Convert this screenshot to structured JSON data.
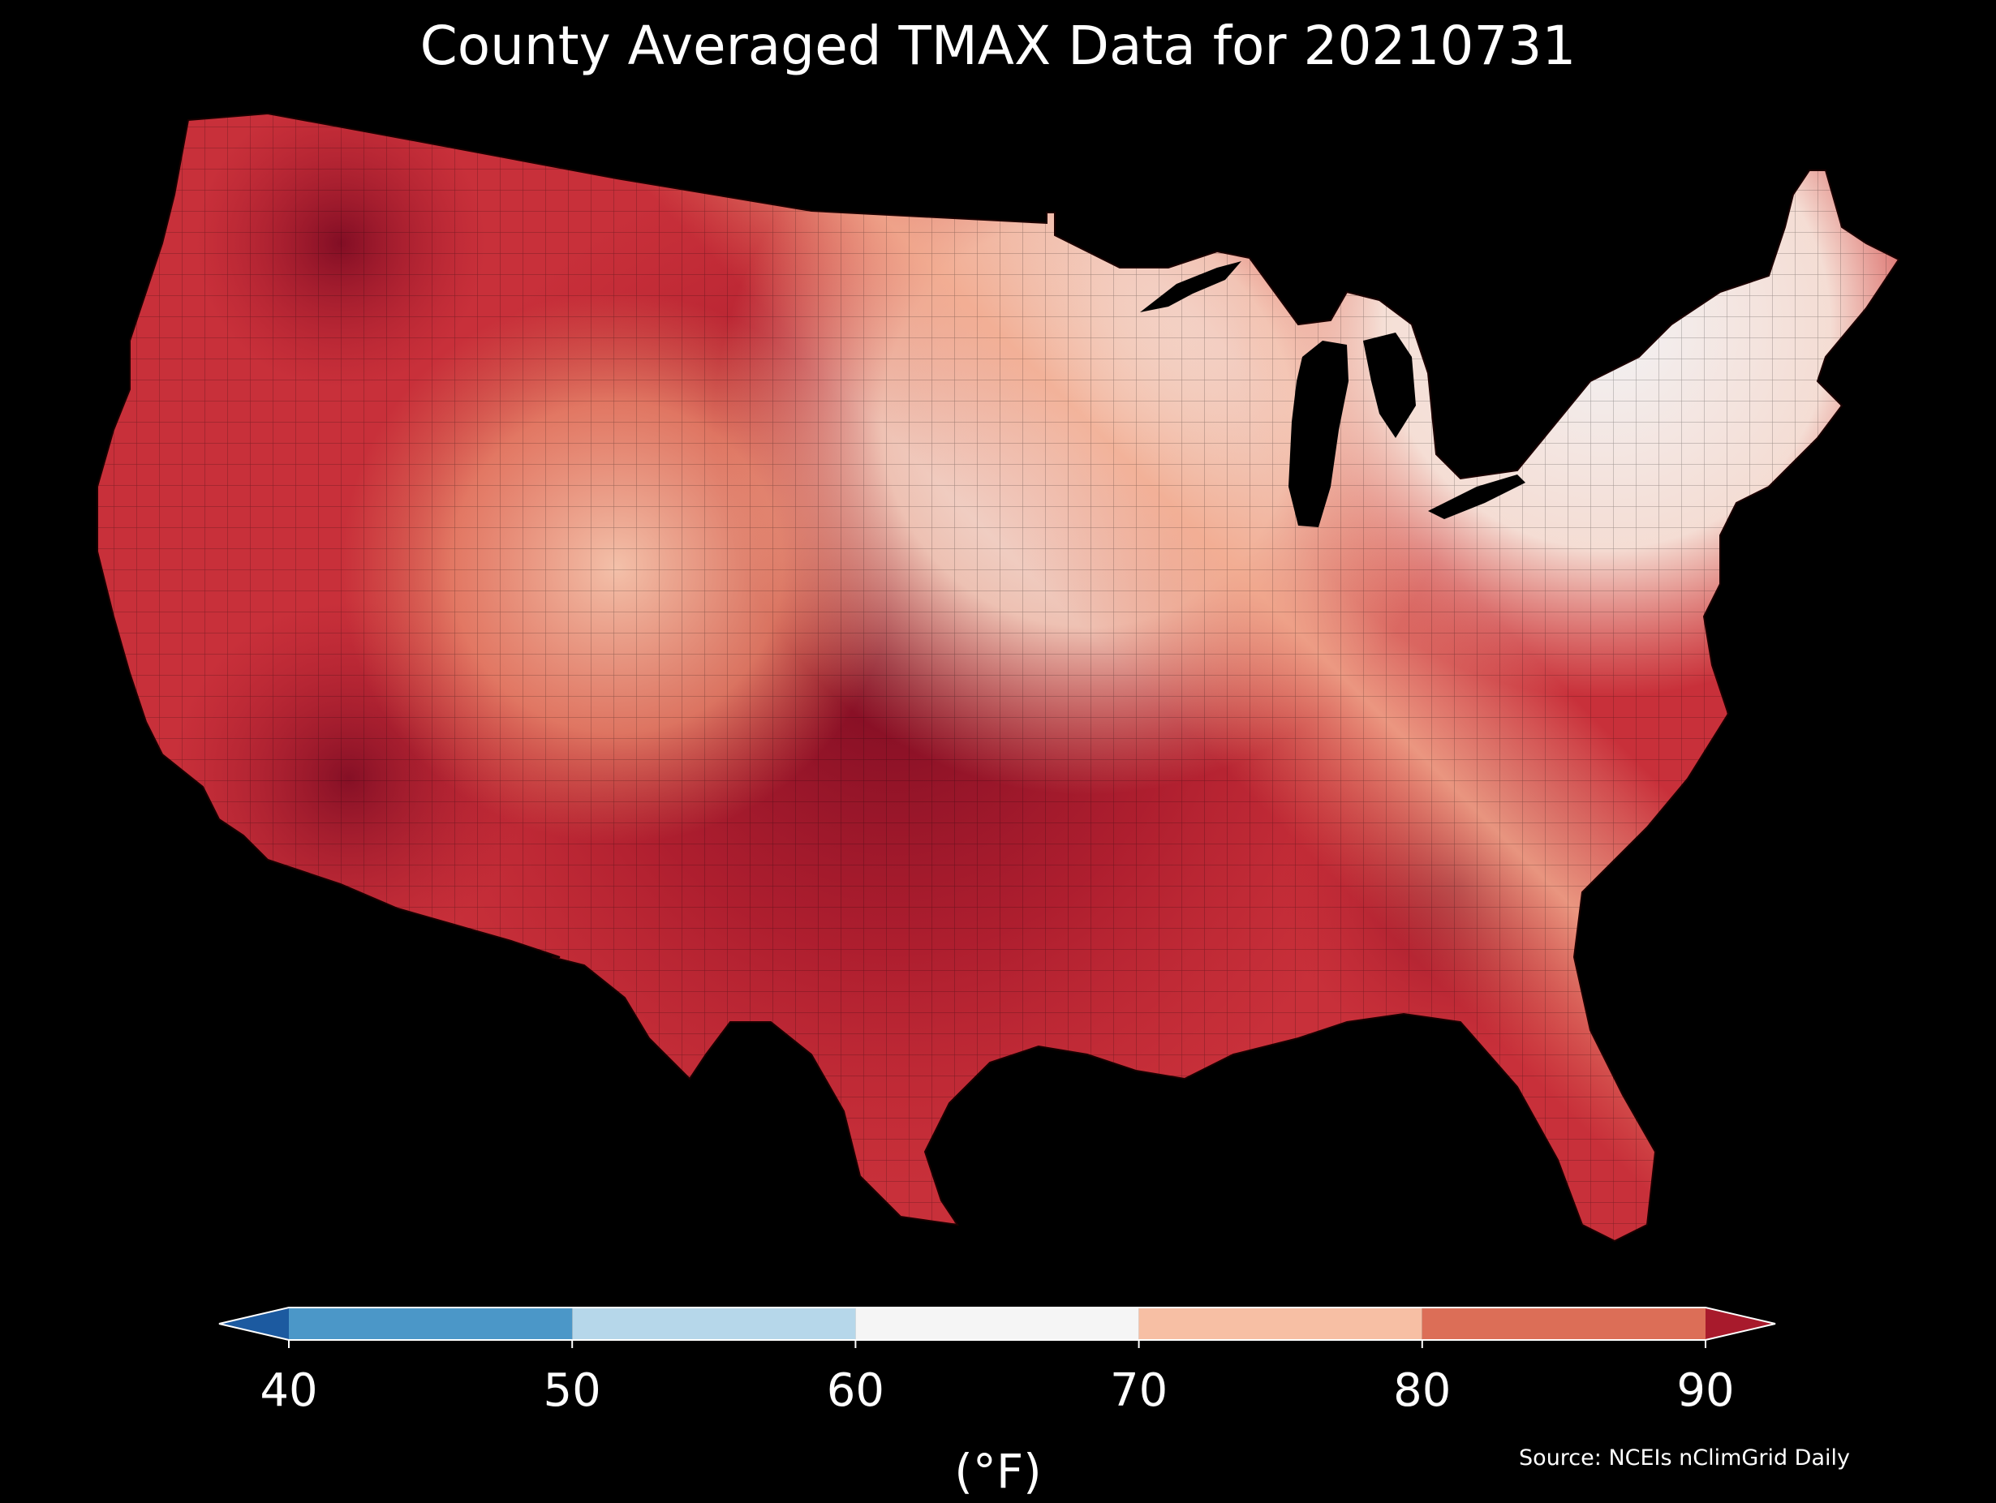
{
  "title": "County Averaged TMAX Data for 20210731",
  "colorbar": {
    "ticks": [
      "40",
      "50",
      "60",
      "70",
      "80",
      "90"
    ],
    "unit_label": "(°F)",
    "bins": [
      {
        "range": [
          40,
          50
        ],
        "color": "#4b97c8"
      },
      {
        "range": [
          50,
          60
        ],
        "color": "#b6d7ea"
      },
      {
        "range": [
          60,
          70
        ],
        "color": "#f5f5f5"
      },
      {
        "range": [
          70,
          80
        ],
        "color": "#f7bfa4"
      },
      {
        "range": [
          80,
          90
        ],
        "color": "#dc6e57"
      }
    ],
    "under_color": "#1c5aa0",
    "over_color": "#a81a2c",
    "extend": "both"
  },
  "source": "Source: NCEIs nClimGrid Daily",
  "map": {
    "region": "Contiguous United States",
    "unit": "county",
    "variable": "TMAX",
    "background_color": "#000000",
    "scale": {
      "min": 40,
      "max": 90,
      "step": 10
    },
    "palette_stops": [
      "#1c5aa0",
      "#4b97c8",
      "#b6d7ea",
      "#f5f5f5",
      "#f7bfa4",
      "#dc6e57",
      "#a81a2c",
      "#7a0a22"
    ]
  }
}
